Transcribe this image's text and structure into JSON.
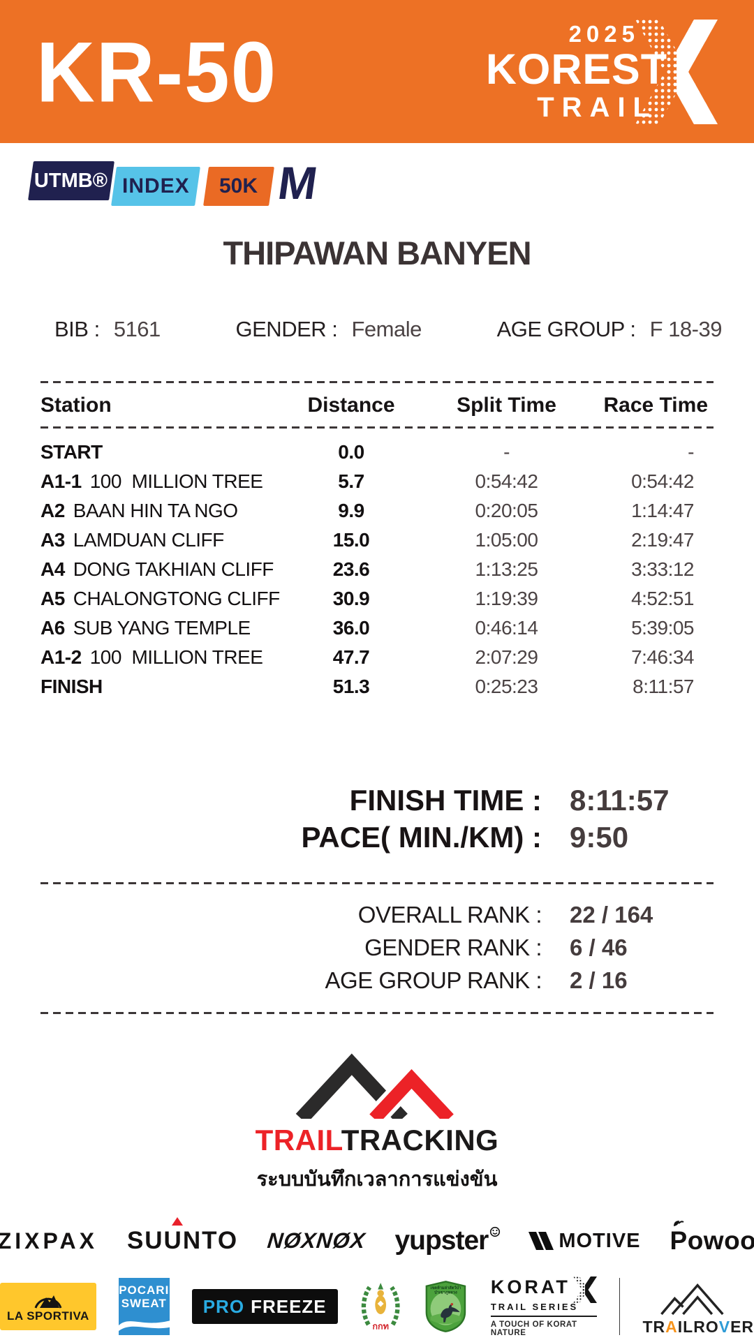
{
  "header": {
    "race_code": "KR-50",
    "event_year": "2025",
    "event_name_line1": "KOREST",
    "event_name_line2": "TRAIL"
  },
  "utmb_badge": {
    "utmb": "UTMB®",
    "index": "INDEX",
    "distance_cat": "50K",
    "m_letter": "M"
  },
  "runner": {
    "name": "THIPAWAN BANYEN",
    "bib_label": "BIB :",
    "bib": "5161",
    "gender_label": "GENDER :",
    "gender": "Female",
    "age_group_label": "AGE GROUP :",
    "age_group": "F 18-39"
  },
  "splits_table": {
    "headers": [
      "Station",
      "Distance",
      "Split Time",
      "Race Time"
    ],
    "rows": [
      {
        "code": "START",
        "name": "",
        "distance": "0.0",
        "split": "-",
        "race": "-"
      },
      {
        "code": "A1-1",
        "name": "100  MILLION TREE",
        "distance": "5.7",
        "split": "0:54:42",
        "race": "0:54:42"
      },
      {
        "code": "A2",
        "name": "BAAN HIN TA NGO",
        "distance": "9.9",
        "split": "0:20:05",
        "race": "1:14:47"
      },
      {
        "code": "A3",
        "name": "LAMDUAN CLIFF",
        "distance": "15.0",
        "split": "1:05:00",
        "race": "2:19:47"
      },
      {
        "code": "A4",
        "name": "DONG TAKHIAN CLIFF",
        "distance": "23.6",
        "split": "1:13:25",
        "race": "3:33:12"
      },
      {
        "code": "A5",
        "name": "CHALONGTONG CLIFF",
        "distance": "30.9",
        "split": "1:19:39",
        "race": "4:52:51"
      },
      {
        "code": "A6",
        "name": "SUB YANG TEMPLE",
        "distance": "36.0",
        "split": "0:46:14",
        "race": "5:39:05"
      },
      {
        "code": "A1-2",
        "name": "100  MILLION TREE",
        "distance": "47.7",
        "split": "2:07:29",
        "race": "7:46:34"
      },
      {
        "code": "FINISH",
        "name": "",
        "distance": "51.3",
        "split": "0:25:23",
        "race": "8:11:57"
      }
    ]
  },
  "summary": {
    "finish_time_label": "FINISH TIME :",
    "finish_time": "8:11:57",
    "pace_label": "PACE( MIN./KM) :",
    "pace": "9:50"
  },
  "ranks": {
    "overall_label": "OVERALL RANK :",
    "overall": "22 / 164",
    "gender_label": "GENDER RANK :",
    "gender": "6 / 46",
    "age_group_label": "AGE GROUP RANK :",
    "age_group": "2 / 16"
  },
  "footer": {
    "timing_brand_trail": "TRAIL",
    "timing_brand_tracking": "TRACKING",
    "timing_tagline_thai": "ระบบบันทึกเวลาการแข่งขัน"
  },
  "sponsors_row1": {
    "zixpax": "ZIXPAX",
    "suunto": "SUUNTO",
    "noxnox": "NØXNØX",
    "yupster": "yupster",
    "motive": "MOTIVE",
    "powoo": "Powoo"
  },
  "sponsors_row2": {
    "la_sportiva": "LA SPORTIVA",
    "pocari_line1": "POCARI",
    "pocari_line2": "SWEAT",
    "pro": "PRO",
    "freeze": "FREEZE",
    "sat_thai": "กกท",
    "sanctuary_thai_line1": "เขตห้ามล่าสัตว์ป่า",
    "sanctuary_thai_line2": "ป่าเขาภูหลวง",
    "korat": "KORAT",
    "korat_sub": "TRAIL  SERIES",
    "korat_tagline": "A TOUCH OF KORAT NATURE",
    "trailrover": "TRAILROVER"
  },
  "icons": {
    "korest_x": "halftone-x",
    "suunto_arrow": "red-triangle",
    "yupster_smiley": "smiley-face",
    "motive_mark": "double-chevron",
    "powoo_leaf": "leaf",
    "trailtracking_mountains": "two-mountain-peaks",
    "la_sportiva_mountain": "mountain-emblem",
    "pocari_wave": "white-wave",
    "sat_emblem": "laurel-wreath-emblem",
    "wildlife_badge": "bird-shield-badge",
    "korat_x": "halftone-x",
    "trailrover_mountains": "mountain-outline"
  },
  "colors": {
    "banner_orange": "#ED7125",
    "navy": "#20214F",
    "index_blue": "#56C3E8",
    "badge_orange": "#EA6A24",
    "text_dark": "#1D1B1B",
    "text_gray": "#4B4344",
    "brand_red": "#EC2227",
    "la_sportiva_yellow": "#FFC72C",
    "pocari_blue": "#2E8FD0",
    "pro_freeze_blue": "#29ABE2",
    "trailrover_blue": "#2E9BD6",
    "trailrover_orange": "#F7941D"
  }
}
